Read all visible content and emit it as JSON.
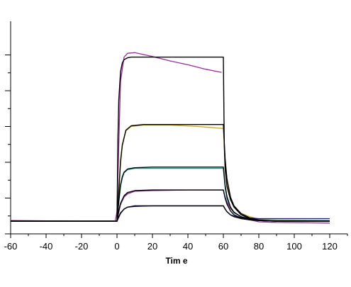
{
  "chart_data": {
    "type": "line",
    "title": "",
    "xlabel": "Tim e",
    "ylabel": "",
    "xlim": [
      -60,
      120
    ],
    "x_ticks": [
      -60,
      -40,
      -20,
      0,
      20,
      40,
      60,
      80,
      100,
      120
    ],
    "x_tick_labels": [
      "-60",
      "-40",
      "-20",
      "0",
      "20",
      "40",
      "60",
      "80",
      "100",
      "120"
    ],
    "grid": false,
    "legend": "none",
    "association_start": 0,
    "dissociation_start": 60,
    "series": [
      {
        "role": "measured",
        "color": "#9b2c9b",
        "x": [
          -60,
          -40,
          -20,
          -1,
          0,
          2,
          4,
          6,
          10,
          20,
          30,
          40,
          50,
          59
        ],
        "y": [
          0.1,
          0.05,
          0.0,
          0.0,
          1.5,
          22.0,
          25.8,
          26.4,
          26.5,
          25.9,
          25.2,
          24.6,
          23.9,
          23.4
        ]
      },
      {
        "role": "fit",
        "color": "#000000",
        "x": [
          -60,
          -40,
          -20,
          -0.5,
          0,
          0.5,
          1,
          2,
          3,
          4,
          6,
          8,
          12,
          20,
          40,
          59.5,
          60,
          60.5,
          61,
          62,
          64,
          66,
          70,
          75,
          80,
          90,
          100,
          120
        ],
        "y": [
          0,
          0,
          0,
          0,
          0,
          13.0,
          19.0,
          23.5,
          24.9,
          25.4,
          25.7,
          25.8,
          25.8,
          25.8,
          25.8,
          25.8,
          25.8,
          11.8,
          8.2,
          5.5,
          3.4,
          2.2,
          1.0,
          0.4,
          0.1,
          0,
          0,
          0
        ]
      },
      {
        "role": "measured",
        "color": "#c8a800",
        "x": [
          -60,
          0,
          1,
          2,
          3,
          5,
          8,
          15,
          30,
          45,
          59,
          60,
          61,
          62,
          64,
          66,
          70,
          75,
          80,
          90,
          120
        ],
        "y": [
          0,
          0,
          4.0,
          9.0,
          11.8,
          14.2,
          14.9,
          15.1,
          15.1,
          14.9,
          14.6,
          14.6,
          9.5,
          6.5,
          3.6,
          2.3,
          1.2,
          0.7,
          0.3,
          0.2,
          0.1
        ]
      },
      {
        "role": "fit",
        "color": "#000000",
        "x": [
          -60,
          0,
          1,
          2,
          3,
          5,
          8,
          15,
          30,
          45,
          59.5,
          60,
          61,
          62,
          64,
          66,
          70,
          75,
          80,
          90,
          120
        ],
        "y": [
          0,
          0,
          4.8,
          9.4,
          12.0,
          14.3,
          15.0,
          15.2,
          15.2,
          15.2,
          15.2,
          15.2,
          9.8,
          6.7,
          3.8,
          2.4,
          1.2,
          0.5,
          0.2,
          0,
          0
        ]
      },
      {
        "role": "measured",
        "color": "#0aa098",
        "x": [
          -60,
          0,
          1,
          2,
          3,
          4,
          6,
          10,
          20,
          40,
          59,
          60,
          61,
          62,
          64,
          66,
          70,
          75,
          80,
          90,
          120
        ],
        "y": [
          0,
          0,
          2.8,
          5.4,
          6.8,
          7.6,
          8.1,
          8.3,
          8.3,
          8.3,
          8.3,
          8.3,
          5.2,
          3.6,
          2.0,
          1.3,
          0.7,
          0.4,
          0.2,
          0.1,
          0.1
        ]
      },
      {
        "role": "fit",
        "color": "#000000",
        "x": [
          -60,
          0,
          1,
          2,
          3,
          4,
          6,
          10,
          20,
          40,
          59.5,
          60,
          61,
          62,
          64,
          66,
          70,
          75,
          80,
          90,
          120
        ],
        "y": [
          0,
          0,
          3.2,
          5.7,
          7.0,
          7.7,
          8.2,
          8.4,
          8.5,
          8.5,
          8.5,
          8.5,
          5.6,
          3.9,
          2.2,
          1.4,
          0.7,
          0.3,
          0.1,
          0,
          0
        ]
      },
      {
        "role": "measured",
        "color": "#8c2d92",
        "x": [
          -60,
          0,
          1,
          2,
          4,
          6,
          10,
          20,
          40,
          59,
          60,
          61,
          62,
          64,
          66,
          70,
          75,
          80,
          90,
          120
        ],
        "y": [
          0,
          0,
          1.4,
          2.6,
          3.8,
          4.3,
          4.7,
          4.8,
          4.9,
          4.9,
          4.9,
          3.8,
          3.0,
          2.0,
          1.4,
          0.7,
          0.2,
          -0.1,
          -0.2,
          -0.3
        ]
      },
      {
        "role": "fit",
        "color": "#000000",
        "x": [
          -60,
          0,
          1,
          2,
          4,
          6,
          10,
          20,
          40,
          59.5,
          60,
          61,
          62,
          64,
          66,
          70,
          75,
          80,
          90,
          120
        ],
        "y": [
          0,
          0,
          1.6,
          2.8,
          4.0,
          4.5,
          4.8,
          4.9,
          4.9,
          4.9,
          4.9,
          3.6,
          2.7,
          1.6,
          1.0,
          0.5,
          0.2,
          0.1,
          0,
          0
        ]
      },
      {
        "role": "measured",
        "color": "#1a1aa8",
        "x": [
          -60,
          0,
          1,
          2,
          4,
          6,
          10,
          20,
          40,
          59,
          60,
          61,
          62,
          64,
          66,
          70,
          75,
          80,
          90,
          120
        ],
        "y": [
          0,
          0,
          0.6,
          1.2,
          1.9,
          2.2,
          2.3,
          2.4,
          2.4,
          2.4,
          2.4,
          1.9,
          1.5,
          1.0,
          0.8,
          0.6,
          0.5,
          0.4,
          0.4,
          0.4
        ]
      },
      {
        "role": "fit",
        "color": "#000000",
        "x": [
          -60,
          0,
          1,
          2,
          4,
          6,
          10,
          20,
          40,
          59.5,
          60,
          61,
          62,
          64,
          66,
          70,
          75,
          80,
          90,
          120
        ],
        "y": [
          0,
          0,
          0.7,
          1.3,
          1.9,
          2.2,
          2.4,
          2.4,
          2.4,
          2.4,
          2.4,
          1.9,
          1.5,
          1.0,
          0.7,
          0.4,
          0.2,
          0.1,
          0,
          0
        ]
      }
    ]
  }
}
